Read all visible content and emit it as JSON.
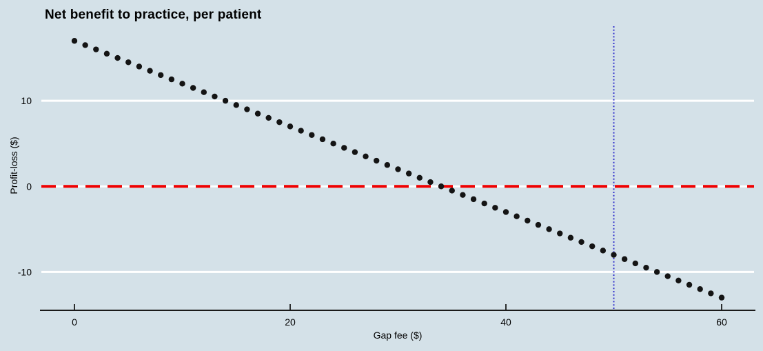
{
  "figure": {
    "background_color": "#d4e1e8",
    "gridline_color": "#ffffff",
    "axis_color": "#1a1a1a",
    "text_color": "#000000"
  },
  "chart_data": {
    "type": "scatter",
    "title": "Net benefit to practice, per patient",
    "xlabel": "Gap fee ($)",
    "ylabel": "Profit-loss ($)",
    "x_ticks": [
      0,
      20,
      40,
      60
    ],
    "y_ticks": [
      10,
      0,
      -10
    ],
    "xlim": [
      -3.2,
      63.2
    ],
    "ylim": [
      -14.5,
      18.7
    ],
    "grid": "horizontal-only",
    "legend": "none",
    "series": [
      {
        "name": "net-benefit-per-patient",
        "marker": "filled-circle",
        "color": "#141414",
        "x": [
          0,
          1,
          2,
          3,
          4,
          5,
          6,
          7,
          8,
          9,
          10,
          11,
          12,
          13,
          14,
          15,
          16,
          17,
          18,
          19,
          20,
          21,
          22,
          23,
          24,
          25,
          26,
          27,
          28,
          29,
          30,
          31,
          32,
          33,
          34,
          35,
          36,
          37,
          38,
          39,
          40,
          41,
          42,
          43,
          44,
          45,
          46,
          47,
          48,
          49,
          50,
          51,
          52,
          53,
          54,
          55,
          56,
          57,
          58,
          59,
          60
        ],
        "y": [
          17,
          16.5,
          16,
          15.5,
          15,
          14.5,
          14,
          13.5,
          13,
          12.5,
          12,
          11.5,
          11,
          10.5,
          10,
          9.5,
          9,
          8.5,
          8,
          7.5,
          7,
          6.5,
          6,
          5.5,
          5,
          4.5,
          4,
          3.5,
          3,
          2.5,
          2,
          1.5,
          1,
          0.5,
          0,
          -0.5,
          -1,
          -1.5,
          -2,
          -2.5,
          -3,
          -3.5,
          -4,
          -4.5,
          -5,
          -5.5,
          -6,
          -6.5,
          -7,
          -7.5,
          -8,
          -8.5,
          -9,
          -9.5,
          -10,
          -10.5,
          -11,
          -11.5,
          -12,
          -12.5,
          -13
        ]
      }
    ],
    "reference_lines": [
      {
        "orientation": "horizontal",
        "value": 0,
        "style": "dashed",
        "color": "#f00000"
      },
      {
        "orientation": "vertical",
        "value": 50,
        "style": "dotted",
        "color": "#3333cc"
      }
    ]
  }
}
